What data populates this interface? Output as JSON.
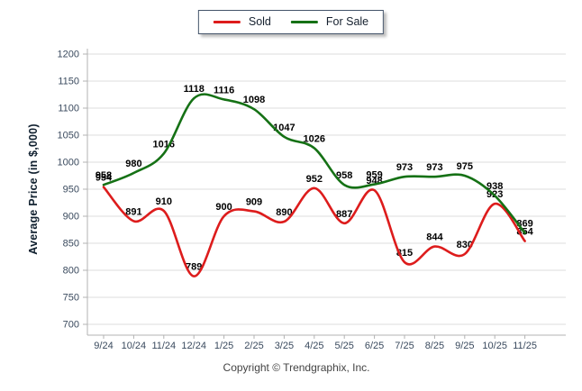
{
  "chart_data": {
    "type": "line",
    "title": "",
    "xlabel": "",
    "ylabel": "Average Price (in $,000)",
    "ylim": [
      700,
      1200
    ],
    "yticks": [
      700,
      750,
      800,
      850,
      900,
      950,
      1000,
      1050,
      1100,
      1150,
      1200
    ],
    "grid": true,
    "smooth": true,
    "data_labels": true,
    "legend_position": "top-center",
    "categories": [
      "9/24",
      "10/24",
      "11/24",
      "12/24",
      "1/25",
      "2/25",
      "3/25",
      "4/25",
      "5/25",
      "6/25",
      "7/25",
      "8/25",
      "9/25",
      "10/25",
      "11/25"
    ],
    "series": [
      {
        "name": "Sold",
        "color": "#dd1c1c",
        "values": [
          954,
          891,
          910,
          789,
          900,
          909,
          890,
          952,
          887,
          948,
          815,
          844,
          830,
          923,
          854
        ]
      },
      {
        "name": "For Sale",
        "color": "#157115",
        "values": [
          958,
          980,
          1016,
          1118,
          1116,
          1098,
          1047,
          1026,
          958,
          959,
          973,
          973,
          975,
          938,
          869
        ]
      }
    ]
  },
  "footer": {
    "copyright": "Copyright © Trendgraphix, Inc."
  }
}
